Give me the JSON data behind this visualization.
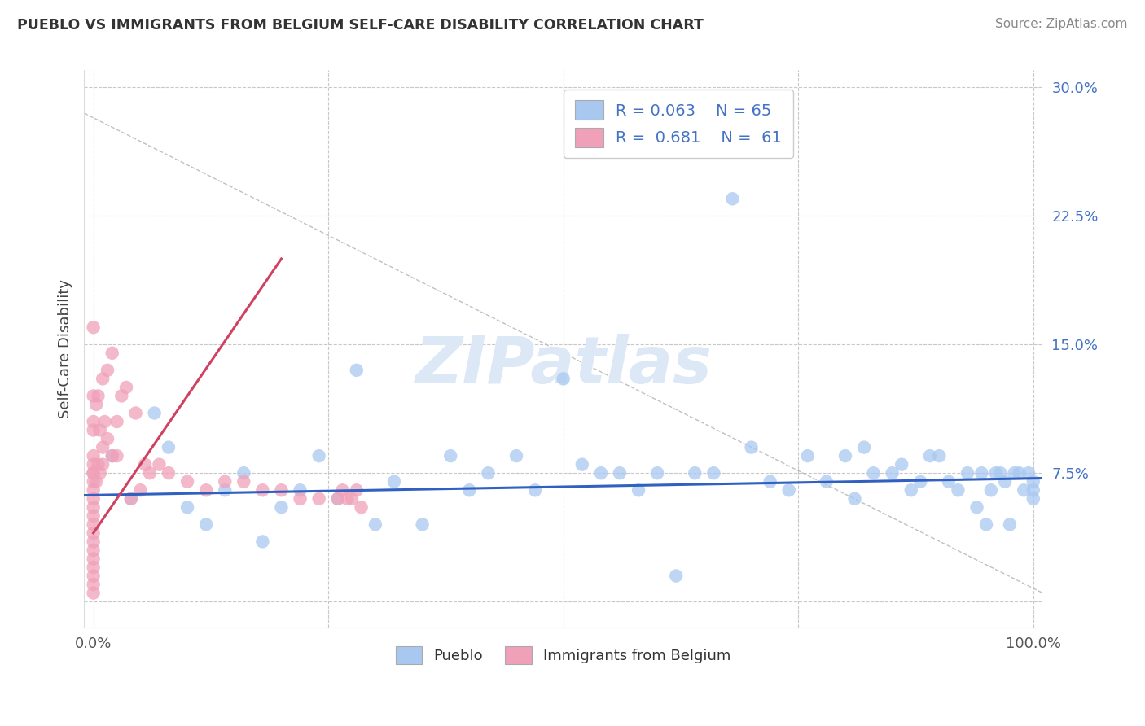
{
  "title": "PUEBLO VS IMMIGRANTS FROM BELGIUM SELF-CARE DISABILITY CORRELATION CHART",
  "source": "Source: ZipAtlas.com",
  "ylabel": "Self-Care Disability",
  "xlim": [
    -1,
    101
  ],
  "ylim": [
    -1.5,
    31
  ],
  "yticks": [
    0,
    7.5,
    15.0,
    22.5,
    30.0
  ],
  "ytick_labels": [
    "",
    "7.5%",
    "15.0%",
    "22.5%",
    "30.0%"
  ],
  "xticks": [
    0,
    100
  ],
  "xtick_labels": [
    "0.0%",
    "100.0%"
  ],
  "pueblo_color": "#a8c8f0",
  "belgium_color": "#f0a0b8",
  "pueblo_line_color": "#3060c0",
  "belgium_line_color": "#d04060",
  "grid_color": "#c8c8c8",
  "tick_color": "#4472c4",
  "watermark_color": "#dce8f5",
  "pueblo_R": 0.063,
  "pueblo_N": 65,
  "belgium_R": 0.681,
  "belgium_N": 61,
  "pueblo_scatter_x": [
    2.0,
    4.0,
    6.5,
    8.0,
    10.0,
    12.0,
    14.0,
    16.0,
    18.0,
    20.0,
    22.0,
    24.0,
    26.0,
    28.0,
    30.0,
    32.0,
    35.0,
    38.0,
    40.0,
    42.0,
    45.0,
    47.0,
    50.0,
    52.0,
    54.0,
    56.0,
    58.0,
    60.0,
    62.0,
    64.0,
    66.0,
    68.0,
    70.0,
    72.0,
    74.0,
    76.0,
    78.0,
    80.0,
    81.0,
    82.0,
    83.0,
    85.0,
    86.0,
    87.0,
    88.0,
    89.0,
    90.0,
    91.0,
    92.0,
    93.0,
    94.0,
    94.5,
    95.0,
    95.5,
    96.0,
    96.5,
    97.0,
    97.5,
    98.0,
    98.5,
    99.0,
    99.5,
    100.0,
    100.0,
    100.0
  ],
  "pueblo_scatter_y": [
    8.5,
    6.0,
    11.0,
    9.0,
    5.5,
    4.5,
    6.5,
    7.5,
    3.5,
    5.5,
    6.5,
    8.5,
    6.0,
    13.5,
    4.5,
    7.0,
    4.5,
    8.5,
    6.5,
    7.5,
    8.5,
    6.5,
    13.0,
    8.0,
    7.5,
    7.5,
    6.5,
    7.5,
    1.5,
    7.5,
    7.5,
    23.5,
    9.0,
    7.0,
    6.5,
    8.5,
    7.0,
    8.5,
    6.0,
    9.0,
    7.5,
    7.5,
    8.0,
    6.5,
    7.0,
    8.5,
    8.5,
    7.0,
    6.5,
    7.5,
    5.5,
    7.5,
    4.5,
    6.5,
    7.5,
    7.5,
    7.0,
    4.5,
    7.5,
    7.5,
    6.5,
    7.5,
    7.0,
    6.5,
    6.0
  ],
  "belgium_scatter_x": [
    0.0,
    0.0,
    0.0,
    0.0,
    0.0,
    0.0,
    0.0,
    0.0,
    0.0,
    0.0,
    0.0,
    0.0,
    0.0,
    0.0,
    0.0,
    0.0,
    0.0,
    0.0,
    0.0,
    0.0,
    0.0,
    0.0,
    0.3,
    0.3,
    0.5,
    0.5,
    0.7,
    0.7,
    1.0,
    1.0,
    1.0,
    1.2,
    1.5,
    1.5,
    2.0,
    2.0,
    2.5,
    2.5,
    3.0,
    3.5,
    4.0,
    4.5,
    5.0,
    5.5,
    6.0,
    7.0,
    8.0,
    10.0,
    12.0,
    14.0,
    16.0,
    18.0,
    20.0,
    22.0,
    24.0,
    26.0,
    26.5,
    27.0,
    27.5,
    28.0,
    28.5
  ],
  "belgium_scatter_y": [
    0.5,
    1.0,
    1.5,
    2.0,
    2.5,
    3.0,
    3.5,
    4.0,
    4.5,
    5.0,
    5.5,
    6.0,
    6.5,
    7.0,
    7.5,
    7.5,
    8.0,
    8.5,
    10.0,
    10.5,
    12.0,
    16.0,
    7.0,
    11.5,
    8.0,
    12.0,
    7.5,
    10.0,
    8.0,
    9.0,
    13.0,
    10.5,
    9.5,
    13.5,
    8.5,
    14.5,
    8.5,
    10.5,
    12.0,
    12.5,
    6.0,
    11.0,
    6.5,
    8.0,
    7.5,
    8.0,
    7.5,
    7.0,
    6.5,
    7.0,
    7.0,
    6.5,
    6.5,
    6.0,
    6.0,
    6.0,
    6.5,
    6.0,
    6.0,
    6.5,
    5.5
  ],
  "pueblo_line_x": [
    -1,
    101
  ],
  "pueblo_line_y": [
    6.2,
    7.2
  ],
  "belgium_line_x": [
    0,
    20
  ],
  "belgium_line_y": [
    4.0,
    20.0
  ],
  "bg_line_x": [
    -1,
    101
  ],
  "bg_line_y": [
    28.5,
    0.5
  ]
}
